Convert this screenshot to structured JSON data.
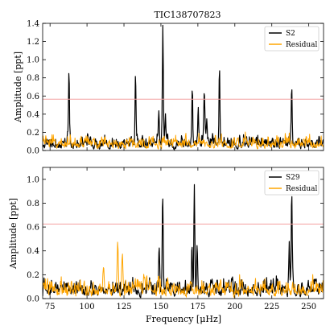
{
  "figure": {
    "title": "TIC138707823",
    "xlabel": "Frequency [μHz]"
  },
  "colors": {
    "residual": "#ffa500",
    "signal": "#000000",
    "threshold": "#f4a0a0",
    "axes": "#000000"
  },
  "chart_data": [
    {
      "type": "line",
      "panel": "top",
      "ylabel": "Amplitude [ppt]",
      "xlim": [
        70,
        260
      ],
      "ylim": [
        0,
        1.4
      ],
      "xticks": [
        75,
        100,
        125,
        150,
        175,
        200,
        225,
        250
      ],
      "yticks": [
        0.0,
        0.2,
        0.4,
        0.6,
        0.8,
        1.0,
        1.2,
        1.4
      ],
      "threshold": 0.565,
      "legend": {
        "placement": "upper right"
      },
      "series": [
        {
          "name": "S2",
          "color": "#000000",
          "noise_level": 0.16,
          "peaks": [
            {
              "x": 87.8,
              "y": 0.85
            },
            {
              "x": 132.8,
              "y": 0.83
            },
            {
              "x": 148.6,
              "y": 0.36
            },
            {
              "x": 151.3,
              "y": 1.3
            },
            {
              "x": 153.0,
              "y": 0.32
            },
            {
              "x": 171.2,
              "y": 0.64
            },
            {
              "x": 175.2,
              "y": 0.37
            },
            {
              "x": 179.3,
              "y": 0.58
            },
            {
              "x": 181.0,
              "y": 0.3
            },
            {
              "x": 189.6,
              "y": 0.87
            },
            {
              "x": 238.5,
              "y": 0.61
            }
          ]
        },
        {
          "name": "Residual",
          "color": "#ffa500",
          "noise_level": 0.16
        }
      ]
    },
    {
      "type": "line",
      "panel": "bottom",
      "ylabel": "Amplitude [ppt]",
      "xlim": [
        70,
        260
      ],
      "ylim": [
        0,
        1.1
      ],
      "xticks": [
        75,
        100,
        125,
        150,
        175,
        200,
        225,
        250
      ],
      "yticks": [
        0.0,
        0.2,
        0.4,
        0.6,
        0.8,
        1.0
      ],
      "threshold": 0.625,
      "legend": {
        "placement": "upper right"
      },
      "series": [
        {
          "name": "S29",
          "color": "#000000",
          "noise_level": 0.16,
          "peaks": [
            {
              "x": 148.8,
              "y": 0.42
            },
            {
              "x": 151.2,
              "y": 0.82
            },
            {
              "x": 171.0,
              "y": 0.4
            },
            {
              "x": 172.6,
              "y": 0.9
            },
            {
              "x": 174.5,
              "y": 0.35
            },
            {
              "x": 236.8,
              "y": 0.37
            },
            {
              "x": 238.5,
              "y": 0.8
            }
          ]
        },
        {
          "name": "Residual",
          "color": "#ffa500",
          "noise_level": 0.17,
          "bumps": [
            {
              "x": 120.8,
              "y": 0.52
            },
            {
              "x": 124.0,
              "y": 0.36
            },
            {
              "x": 111.2,
              "y": 0.34
            }
          ]
        }
      ]
    }
  ]
}
